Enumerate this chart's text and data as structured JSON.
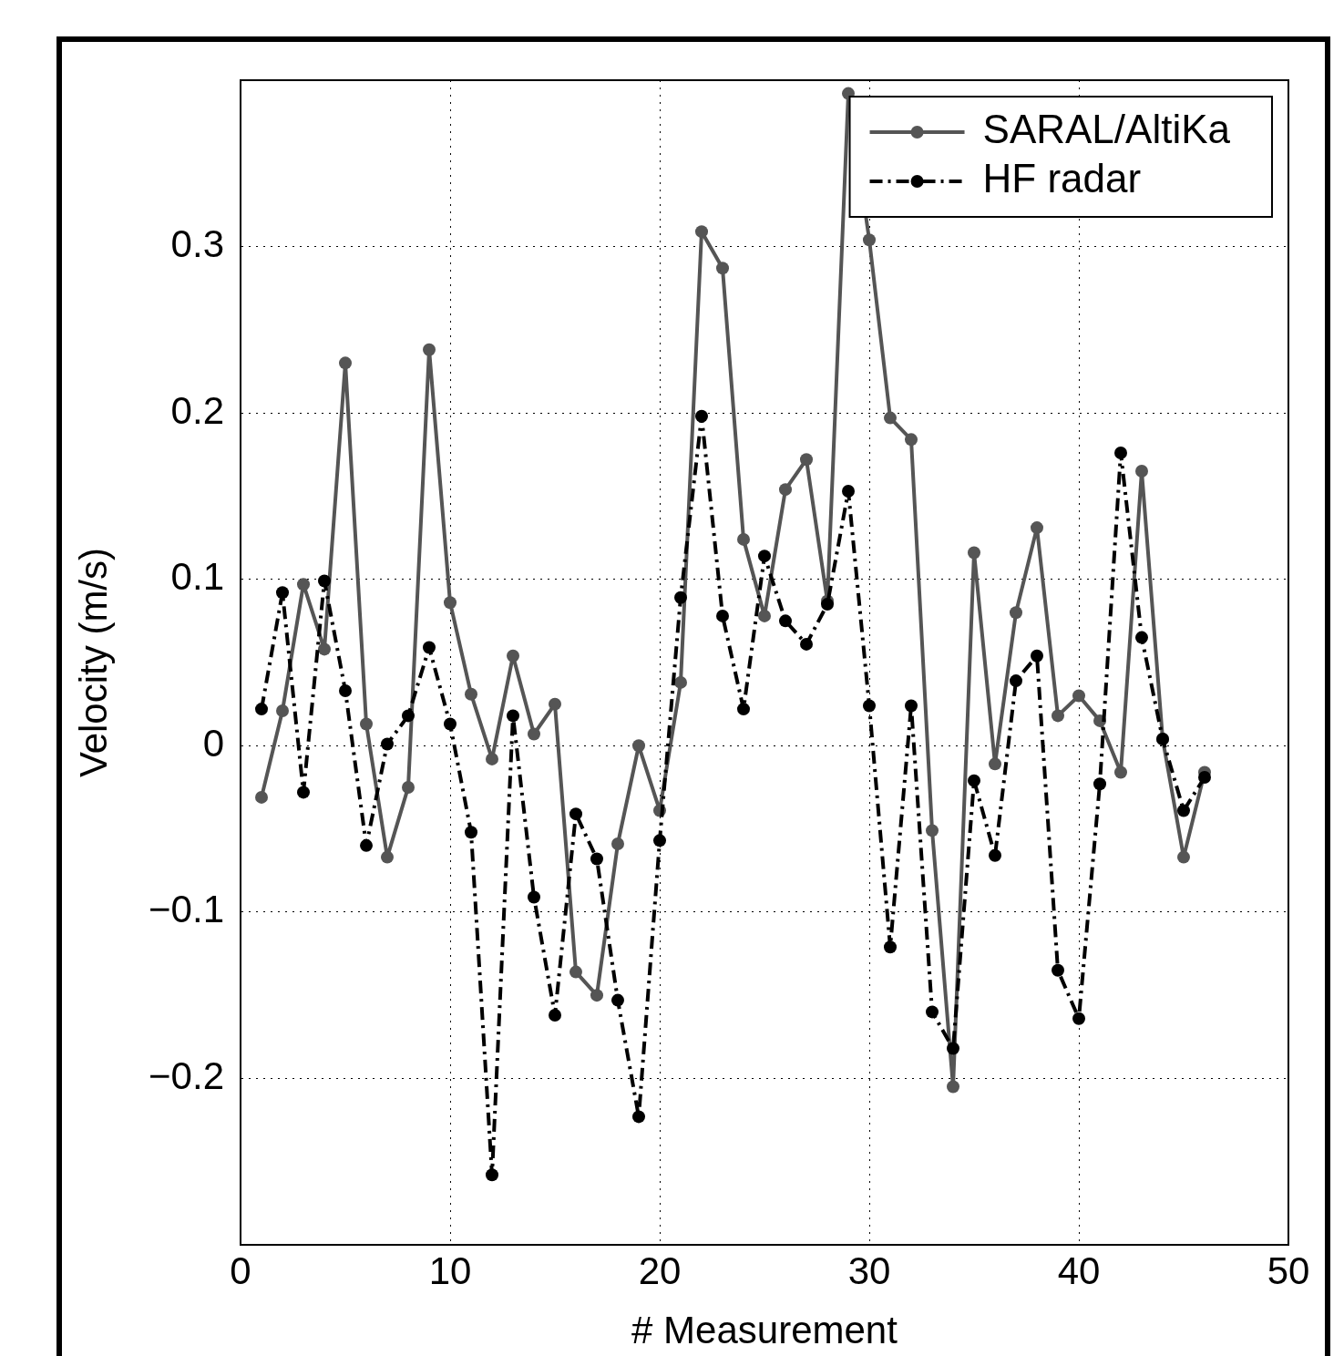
{
  "chart_data": {
    "type": "line",
    "xlabel": "# Measurement",
    "ylabel": "Velocity (m/s)",
    "x": [
      1,
      2,
      3,
      4,
      5,
      6,
      7,
      8,
      9,
      10,
      11,
      12,
      13,
      14,
      15,
      16,
      17,
      18,
      19,
      20,
      21,
      22,
      23,
      24,
      25,
      26,
      27,
      28,
      29,
      30,
      31,
      32,
      33,
      34,
      35,
      36,
      37,
      38,
      39,
      40,
      41,
      42,
      43,
      44,
      45,
      46
    ],
    "series": [
      {
        "name": "SARAL/AltiKa",
        "color": "#555555",
        "marker": "circle",
        "line_style": "solid",
        "values": [
          -0.031,
          0.021,
          0.097,
          0.058,
          0.23,
          0.013,
          -0.067,
          -0.025,
          0.238,
          0.086,
          0.031,
          -0.008,
          0.054,
          0.007,
          0.025,
          -0.136,
          -0.15,
          -0.059,
          0.0,
          -0.039,
          0.038,
          0.309,
          0.287,
          0.124,
          0.078,
          0.154,
          0.172,
          0.087,
          0.392,
          0.304,
          0.197,
          0.184,
          -0.051,
          -0.205,
          0.116,
          -0.011,
          0.08,
          0.131,
          0.018,
          0.03,
          0.015,
          -0.016,
          0.165,
          0.004,
          -0.067,
          -0.016
        ]
      },
      {
        "name": "HF radar",
        "color": "#000000",
        "marker": "circle",
        "line_style": "dashed",
        "values": [
          0.022,
          0.092,
          -0.028,
          0.099,
          0.033,
          -0.06,
          0.001,
          0.018,
          0.059,
          0.013,
          -0.052,
          -0.258,
          0.018,
          -0.091,
          -0.162,
          -0.041,
          -0.068,
          -0.153,
          -0.223,
          -0.057,
          0.089,
          0.198,
          0.078,
          0.022,
          0.114,
          0.075,
          0.061,
          0.085,
          0.153,
          0.024,
          -0.121,
          0.024,
          -0.16,
          -0.182,
          -0.021,
          -0.066,
          0.039,
          0.054,
          -0.135,
          -0.164,
          -0.023,
          0.176,
          0.065,
          0.004,
          -0.039,
          -0.019
        ]
      }
    ],
    "xlim": [
      0,
      50
    ],
    "xticks": [
      0,
      10,
      20,
      30,
      40,
      50
    ],
    "ylim": [
      -0.3,
      0.4
    ],
    "yticks": [
      -0.2,
      -0.1,
      0,
      0.1,
      0.2,
      0.3
    ],
    "grid": true,
    "legend": "top right"
  }
}
